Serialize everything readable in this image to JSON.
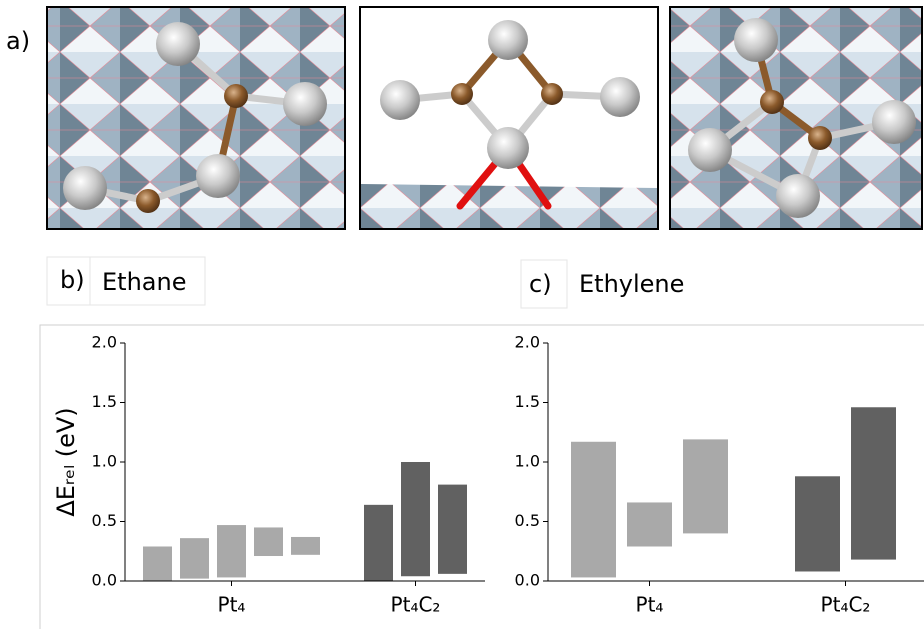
{
  "figure_label": "a)",
  "chart_data": [
    {
      "type": "range-bar",
      "panel": "b)",
      "title": "Ethane",
      "ylabel": "ΔEᵣₑₗ (eV)",
      "ylim": [
        0,
        2
      ],
      "yticks": [
        {
          "value": 0,
          "label": "0.0"
        },
        {
          "value": 0.5,
          "label": "0.5"
        },
        {
          "value": 1,
          "label": "1.0"
        },
        {
          "value": 1.5,
          "label": "1.5"
        },
        {
          "value": 2,
          "label": "2.0"
        }
      ],
      "groups": [
        {
          "label": "Pt₄",
          "color": "#a9a9a9",
          "bars": [
            {
              "low": 0.0,
              "high": 0.29
            },
            {
              "low": 0.02,
              "high": 0.36
            },
            {
              "low": 0.03,
              "high": 0.47
            },
            {
              "low": 0.21,
              "high": 0.45
            },
            {
              "low": 0.22,
              "high": 0.37
            }
          ]
        },
        {
          "label": "Pt₄C₂",
          "color": "#616161",
          "bars": [
            {
              "low": 0.0,
              "high": 0.64
            },
            {
              "low": 0.04,
              "high": 1.0
            },
            {
              "low": 0.06,
              "high": 0.81
            }
          ]
        }
      ]
    },
    {
      "type": "range-bar",
      "panel": "c)",
      "title": "Ethylene",
      "ylim": [
        0,
        2
      ],
      "yticks": [
        {
          "value": 0,
          "label": "0.0"
        },
        {
          "value": 0.5,
          "label": "0.5"
        },
        {
          "value": 1,
          "label": "1.0"
        },
        {
          "value": 1.5,
          "label": "1.5"
        },
        {
          "value": 2,
          "label": "2.0"
        }
      ],
      "groups": [
        {
          "label": "Pt₄",
          "color": "#a9a9a9",
          "bars": [
            {
              "low": 0.03,
              "high": 1.17
            },
            {
              "low": 0.29,
              "high": 0.66
            },
            {
              "low": 0.4,
              "high": 1.19
            }
          ]
        },
        {
          "label": "Pt₄C₂",
          "color": "#616161",
          "bars": [
            {
              "low": 0.08,
              "high": 0.88
            },
            {
              "low": 0.18,
              "high": 1.46
            }
          ]
        }
      ]
    }
  ]
}
